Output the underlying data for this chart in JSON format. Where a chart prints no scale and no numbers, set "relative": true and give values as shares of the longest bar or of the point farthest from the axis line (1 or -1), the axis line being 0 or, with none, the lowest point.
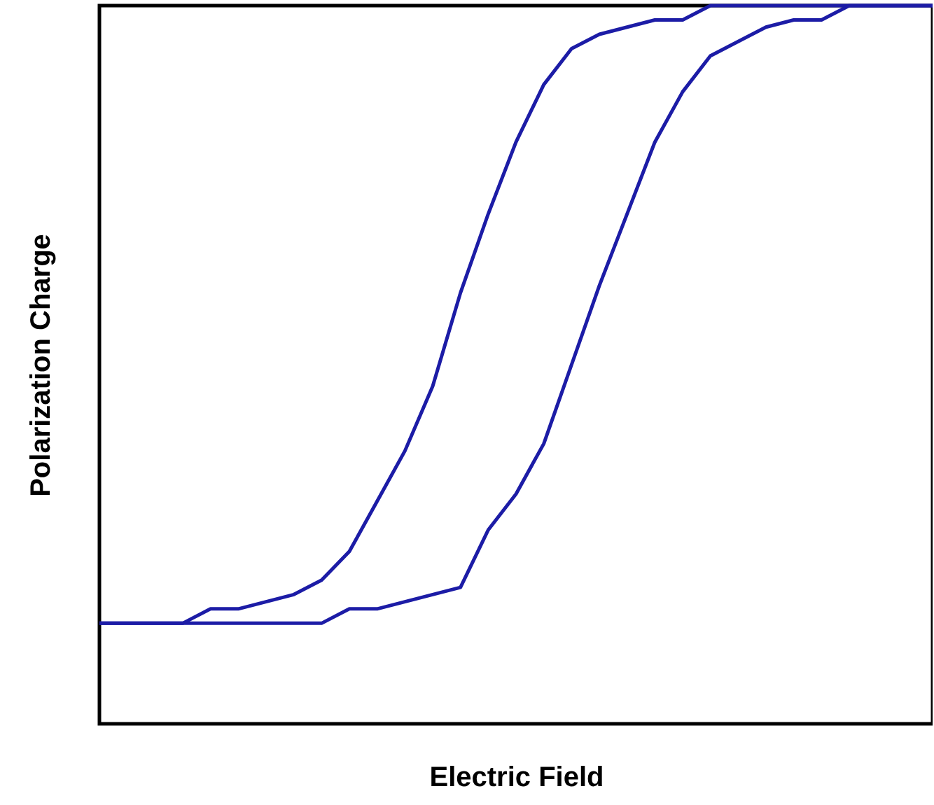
{
  "chart_data": {
    "type": "line",
    "relative": true,
    "xlabel": "Electric Field",
    "ylabel": "Polarization Charge",
    "categories": [
      null,
      null,
      null,
      null,
      null,
      null,
      null,
      null,
      null,
      null,
      null,
      null,
      null,
      null,
      null,
      null,
      null,
      null,
      null,
      null,
      null,
      null,
      null,
      null,
      null,
      null,
      null,
      null,
      null,
      null,
      null
    ],
    "series": [
      {
        "color": "#1c1ca6",
        "values": [
          0.14,
          0.14,
          0.14,
          0.14,
          0.16,
          0.16,
          0.17,
          0.18,
          0.2,
          0.24,
          0.31,
          0.38,
          0.47,
          0.6,
          0.71,
          0.81,
          0.89,
          0.94,
          0.96,
          0.97,
          0.98,
          0.98,
          1,
          1,
          1,
          1,
          1,
          1,
          1,
          1,
          1
        ]
      },
      {
        "color": "#1c1ca6",
        "values": [
          0.14,
          0.14,
          0.14,
          0.14,
          0.14,
          0.14,
          0.14,
          0.14,
          0.14,
          0.16,
          0.16,
          0.17,
          0.18,
          0.19,
          0.27,
          0.32,
          0.39,
          0.5,
          0.61,
          0.71,
          0.81,
          0.88,
          0.93,
          0.95,
          0.97,
          0.98,
          0.98,
          1,
          1,
          1,
          1
        ]
      }
    ]
  }
}
